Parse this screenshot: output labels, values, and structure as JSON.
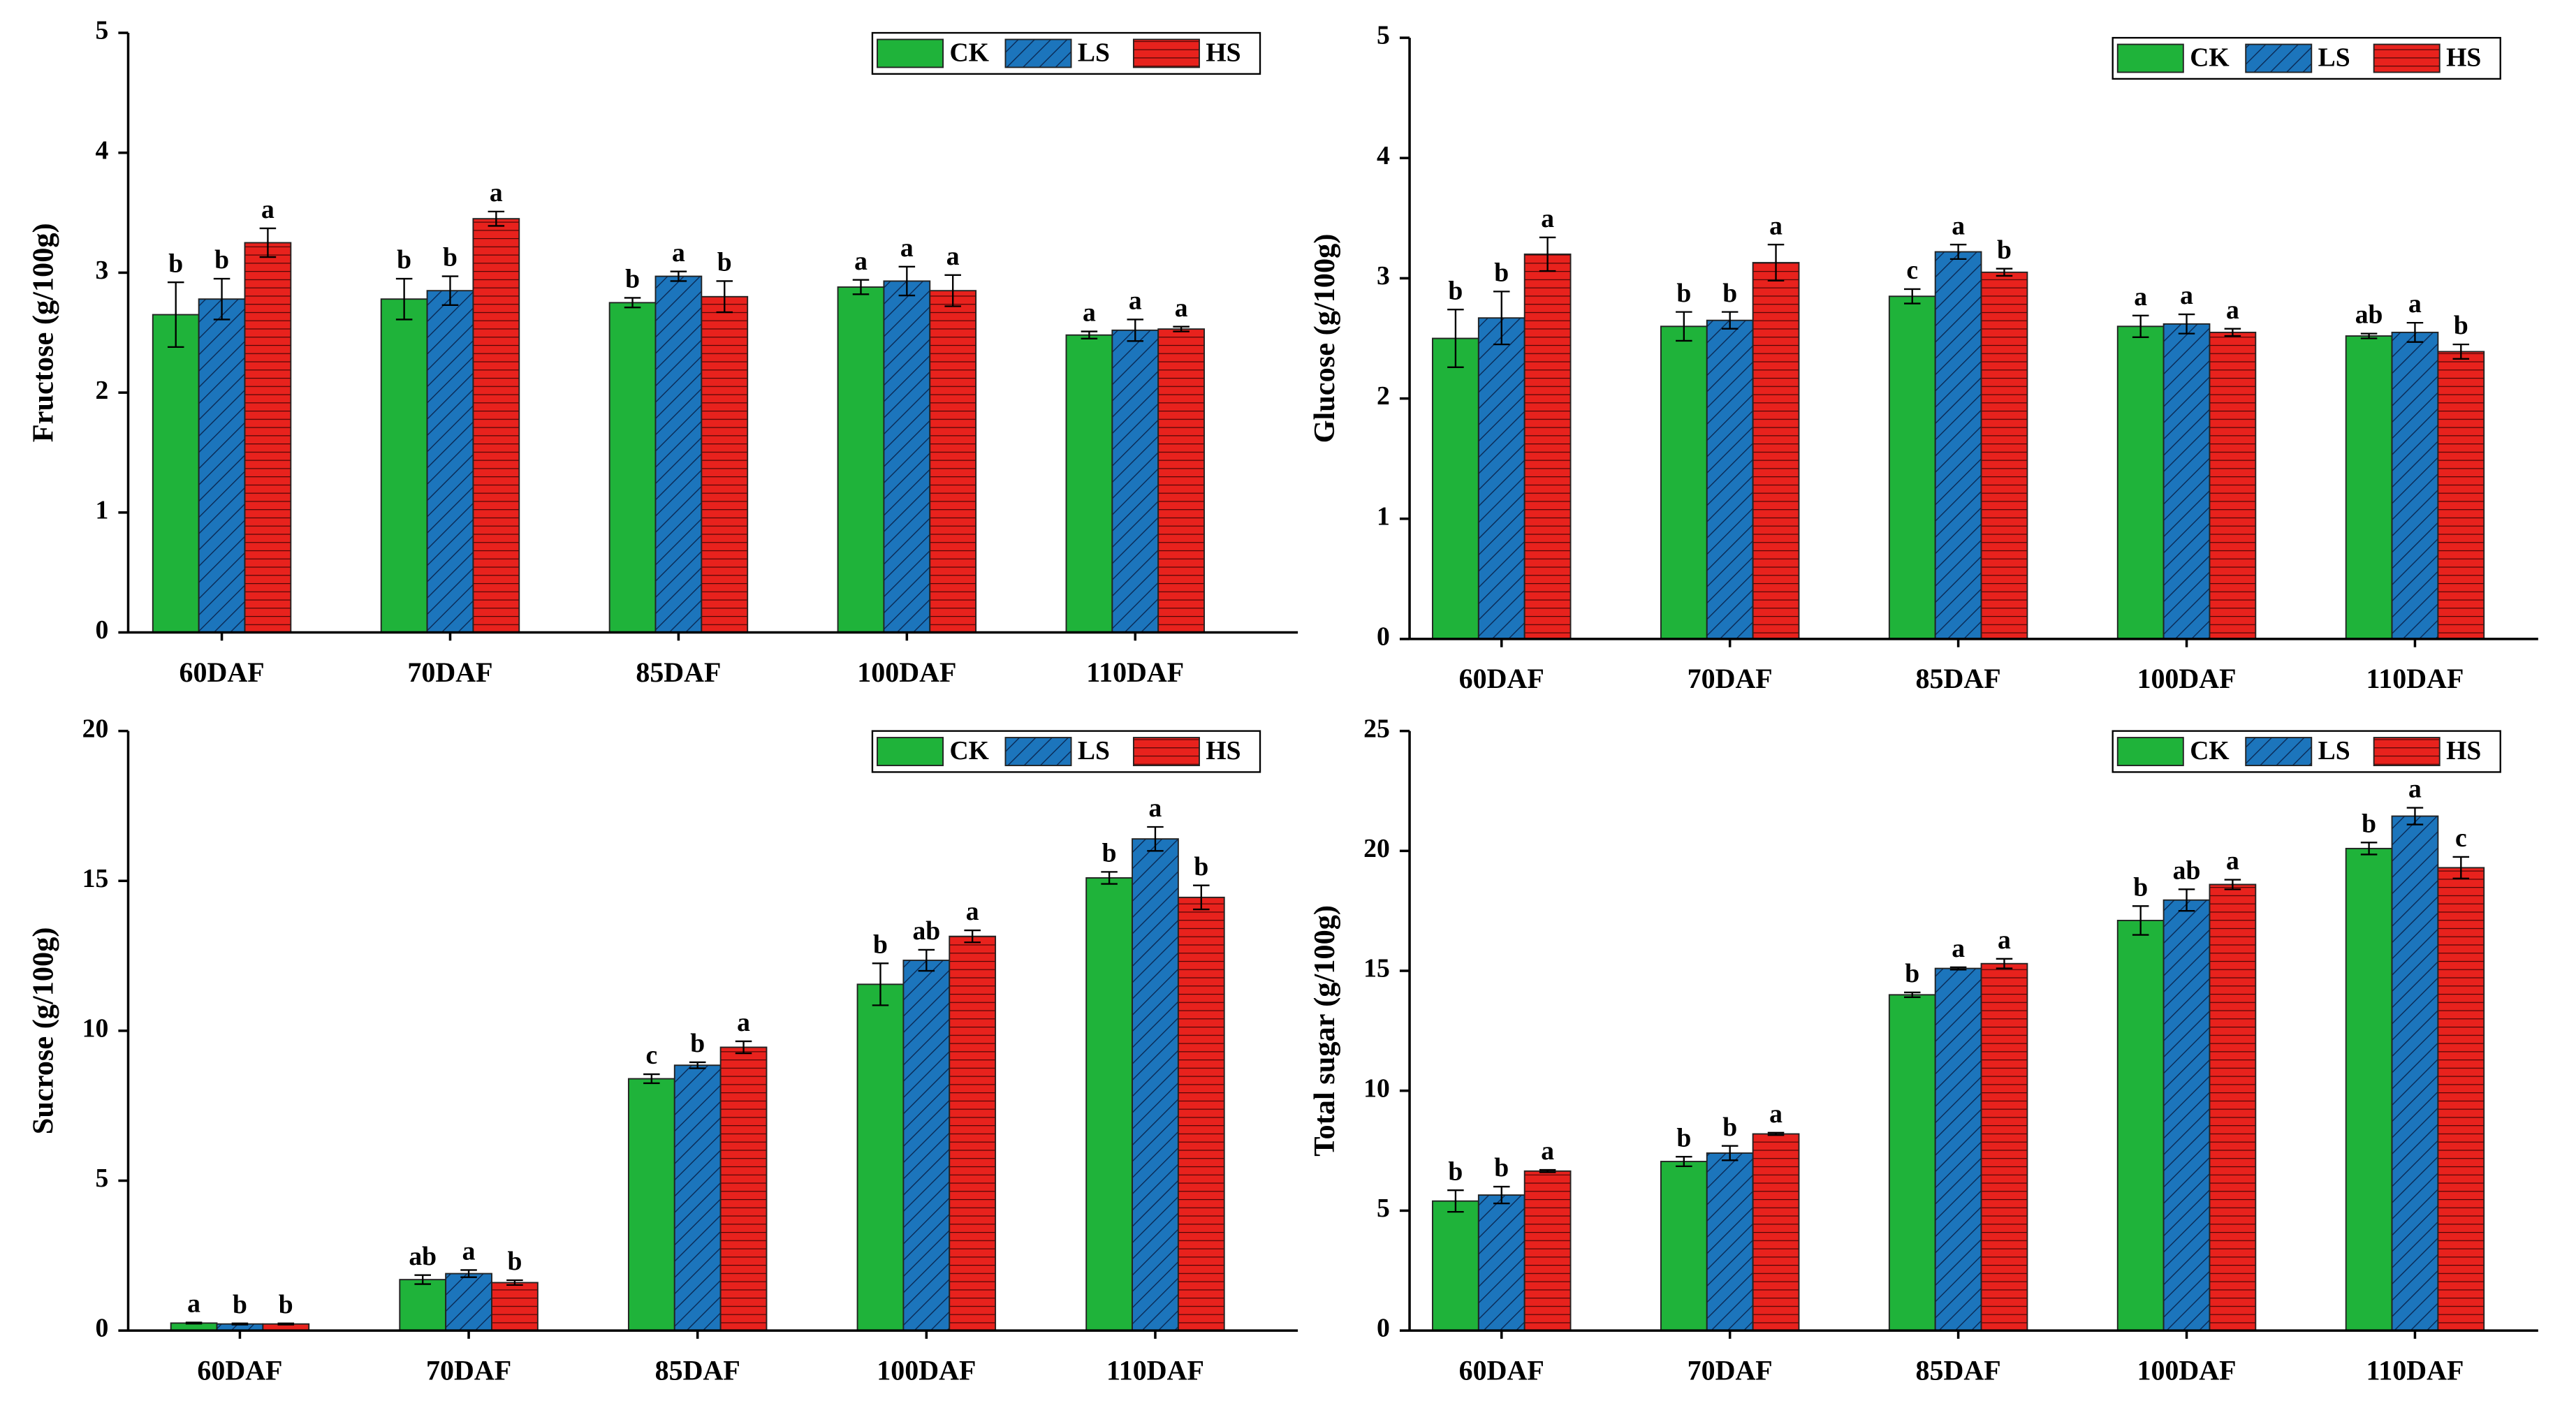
{
  "chart_data": [
    {
      "type": "bar",
      "y_label": "Fructose (g/100g)",
      "categories": [
        "60DAF",
        "70DAF",
        "85DAF",
        "100DAF",
        "110DAF"
      ],
      "ylim": [
        0,
        5
      ],
      "yticks": [
        0,
        1,
        2,
        3,
        4,
        5
      ],
      "legend": "upper right",
      "series": [
        {
          "name": "CK",
          "color": "#1fb33a",
          "values": [
            2.65,
            2.78,
            2.75,
            2.88,
            2.48
          ],
          "errors": [
            0.27,
            0.17,
            0.04,
            0.06,
            0.03
          ],
          "letters": [
            "b",
            "b",
            "b",
            "a",
            "a"
          ]
        },
        {
          "name": "LS",
          "color": "#1c75bc",
          "values": [
            2.78,
            2.85,
            2.97,
            2.93,
            2.52
          ],
          "errors": [
            0.17,
            0.12,
            0.04,
            0.12,
            0.09
          ],
          "letters": [
            "b",
            "b",
            "a",
            "a",
            "a"
          ]
        },
        {
          "name": "HS",
          "color": "#e8221d",
          "values": [
            3.25,
            3.45,
            2.8,
            2.85,
            2.53
          ],
          "errors": [
            0.12,
            0.06,
            0.13,
            0.13,
            0.02
          ],
          "letters": [
            "a",
            "a",
            "b",
            "a",
            "a"
          ]
        }
      ]
    },
    {
      "type": "bar",
      "y_label": "Glucose (g/100g)",
      "categories": [
        "60DAF",
        "70DAF",
        "85DAF",
        "100DAF",
        "110DAF"
      ],
      "ylim": [
        0,
        5
      ],
      "yticks": [
        0,
        1,
        2,
        3,
        4,
        5
      ],
      "legend": "upper right",
      "series": [
        {
          "name": "CK",
          "color": "#1fb33a",
          "values": [
            2.5,
            2.6,
            2.85,
            2.6,
            2.52
          ],
          "errors": [
            0.24,
            0.12,
            0.06,
            0.09,
            0.02
          ],
          "letters": [
            "b",
            "b",
            "c",
            "a",
            "ab"
          ]
        },
        {
          "name": "LS",
          "color": "#1c75bc",
          "values": [
            2.67,
            2.65,
            3.22,
            2.62,
            2.55
          ],
          "errors": [
            0.22,
            0.07,
            0.06,
            0.08,
            0.08
          ],
          "letters": [
            "b",
            "b",
            "a",
            "a",
            "a"
          ]
        },
        {
          "name": "HS",
          "color": "#e8221d",
          "values": [
            3.2,
            3.13,
            3.05,
            2.55,
            2.39
          ],
          "errors": [
            0.14,
            0.15,
            0.03,
            0.03,
            0.06
          ],
          "letters": [
            "a",
            "a",
            "b",
            "a",
            "b"
          ]
        }
      ]
    },
    {
      "type": "bar",
      "y_label": "Sucrose (g/100g)",
      "categories": [
        "60DAF",
        "70DAF",
        "85DAF",
        "100DAF",
        "110DAF"
      ],
      "ylim": [
        0,
        20
      ],
      "yticks": [
        0,
        5,
        10,
        15,
        20
      ],
      "legend": "upper right",
      "series": [
        {
          "name": "CK",
          "color": "#1fb33a",
          "values": [
            0.25,
            1.7,
            8.4,
            11.55,
            15.1
          ],
          "errors": [
            0.02,
            0.15,
            0.15,
            0.7,
            0.2
          ],
          "letters": [
            "a",
            "ab",
            "c",
            "b",
            "b"
          ]
        },
        {
          "name": "LS",
          "color": "#1c75bc",
          "values": [
            0.22,
            1.9,
            8.85,
            12.35,
            16.4
          ],
          "errors": [
            0.02,
            0.12,
            0.1,
            0.35,
            0.4
          ],
          "letters": [
            "b",
            "a",
            "b",
            "ab",
            "a"
          ]
        },
        {
          "name": "HS",
          "color": "#e8221d",
          "values": [
            0.22,
            1.6,
            9.45,
            13.15,
            14.45
          ],
          "errors": [
            0.02,
            0.08,
            0.2,
            0.2,
            0.4
          ],
          "letters": [
            "b",
            "b",
            "a",
            "a",
            "b"
          ]
        }
      ]
    },
    {
      "type": "bar",
      "y_label": "Total sugar  (g/100g)",
      "categories": [
        "60DAF",
        "70DAF",
        "85DAF",
        "100DAF",
        "110DAF"
      ],
      "ylim": [
        0,
        25
      ],
      "yticks": [
        0,
        5,
        10,
        15,
        20,
        25
      ],
      "legend": "upper right",
      "series": [
        {
          "name": "CK",
          "color": "#1fb33a",
          "values": [
            5.4,
            7.05,
            14.0,
            17.1,
            20.1
          ],
          "errors": [
            0.45,
            0.2,
            0.1,
            0.6,
            0.25
          ],
          "letters": [
            "b",
            "b",
            "b",
            "b",
            "b"
          ]
        },
        {
          "name": "LS",
          "color": "#1c75bc",
          "values": [
            5.65,
            7.4,
            15.1,
            17.95,
            21.45
          ],
          "errors": [
            0.35,
            0.3,
            0.05,
            0.45,
            0.35
          ],
          "letters": [
            "b",
            "b",
            "a",
            "ab",
            "a"
          ]
        },
        {
          "name": "HS",
          "color": "#e8221d",
          "values": [
            6.65,
            8.2,
            15.3,
            18.6,
            19.3
          ],
          "errors": [
            0.05,
            0.05,
            0.2,
            0.2,
            0.45
          ],
          "letters": [
            "a",
            "a",
            "a",
            "a",
            "c"
          ]
        }
      ]
    }
  ]
}
